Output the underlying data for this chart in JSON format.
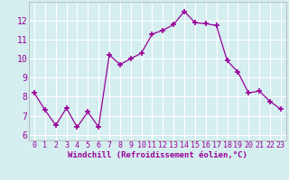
{
  "x": [
    0,
    1,
    2,
    3,
    4,
    5,
    6,
    7,
    8,
    9,
    10,
    11,
    12,
    13,
    14,
    15,
    16,
    17,
    18,
    19,
    20,
    21,
    22,
    23
  ],
  "y": [
    8.2,
    7.3,
    6.5,
    7.4,
    6.4,
    7.2,
    6.4,
    10.2,
    9.7,
    10.0,
    10.3,
    11.3,
    11.5,
    11.8,
    12.5,
    11.9,
    11.85,
    11.75,
    9.9,
    9.3,
    8.2,
    8.3,
    7.75,
    7.35
  ],
  "line_color": "#990099",
  "marker": "+",
  "marker_size": 4,
  "marker_linewidth": 1.2,
  "line_width": 0.9,
  "xlabel": "Windchill (Refroidissement éolien,°C)",
  "xlabel_fontsize": 6.5,
  "xlabel_color": "#990099",
  "ylabel_ticks": [
    6,
    7,
    8,
    9,
    10,
    11,
    12
  ],
  "xtick_labels": [
    "0",
    "1",
    "2",
    "3",
    "4",
    "5",
    "6",
    "7",
    "8",
    "9",
    "10",
    "11",
    "12",
    "13",
    "14",
    "15",
    "16",
    "17",
    "18",
    "19",
    "20",
    "21",
    "22",
    "23"
  ],
  "ylim": [
    5.7,
    13.0
  ],
  "xlim": [
    -0.5,
    23.5
  ],
  "bg_color": "#d5eef0",
  "grid_color": "#ffffff",
  "tick_color": "#990099",
  "tick_fontsize": 6,
  "xlabel_fontweight": "bold"
}
